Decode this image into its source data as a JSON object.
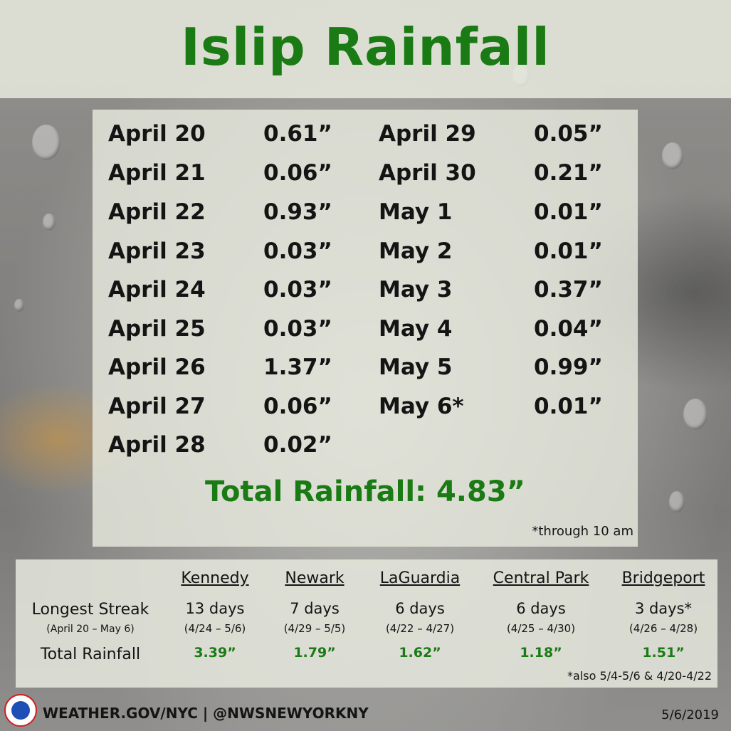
{
  "title": "Islip Rainfall",
  "left_column": [
    {
      "date": "April 20",
      "amount": "0.61”"
    },
    {
      "date": "April 21",
      "amount": "0.06”"
    },
    {
      "date": "April 22",
      "amount": "0.93”"
    },
    {
      "date": "April 23",
      "amount": "0.03”"
    },
    {
      "date": "April 24",
      "amount": "0.03”"
    },
    {
      "date": "April 25",
      "amount": "0.03”"
    },
    {
      "date": "April 26",
      "amount": "1.37”"
    },
    {
      "date": "April 27",
      "amount": "0.06”"
    },
    {
      "date": "April 28",
      "amount": "0.02”"
    }
  ],
  "right_column": [
    {
      "date": "April 29",
      "amount": "0.05”"
    },
    {
      "date": "April 30",
      "amount": "0.21”"
    },
    {
      "date": "May 1",
      "amount": "0.01”"
    },
    {
      "date": "May 2",
      "amount": "0.01”"
    },
    {
      "date": "May 3",
      "amount": "0.37”"
    },
    {
      "date": "May 4",
      "amount": "0.04”"
    },
    {
      "date": "May 5",
      "amount": "0.99”"
    },
    {
      "date": "May 6*",
      "amount": "0.01”"
    }
  ],
  "total_rainfall": "Total Rainfall: 4.83”",
  "note": "*through 10 am",
  "comparison": {
    "stations": [
      "Kennedy",
      "Newark",
      "LaGuardia",
      "Central Park",
      "Bridgeport"
    ],
    "streak_label": "Longest Streak",
    "streak_sublabel": "(April 20 – May 6)",
    "total_label": "Total Rainfall",
    "streaks": [
      "13 days",
      "7 days",
      "6 days",
      "6 days",
      "3 days*"
    ],
    "ranges": [
      "(4/24 – 5/6)",
      "(4/29 – 5/5)",
      "(4/22 – 4/27)",
      "(4/25 – 4/30)",
      "(4/26 – 4/28)"
    ],
    "totals": [
      "3.39”",
      "1.79”",
      "1.62”",
      "1.18”",
      "1.51”"
    ],
    "footnote": "*also 5/4-5/6 & 4/20-4/22"
  },
  "footer": {
    "links": "WEATHER.GOV/NYC | @NWSNEWYORKNY",
    "date": "5/6/2019"
  },
  "colors": {
    "accent_green": "#1a7a14",
    "text": "#141414"
  }
}
